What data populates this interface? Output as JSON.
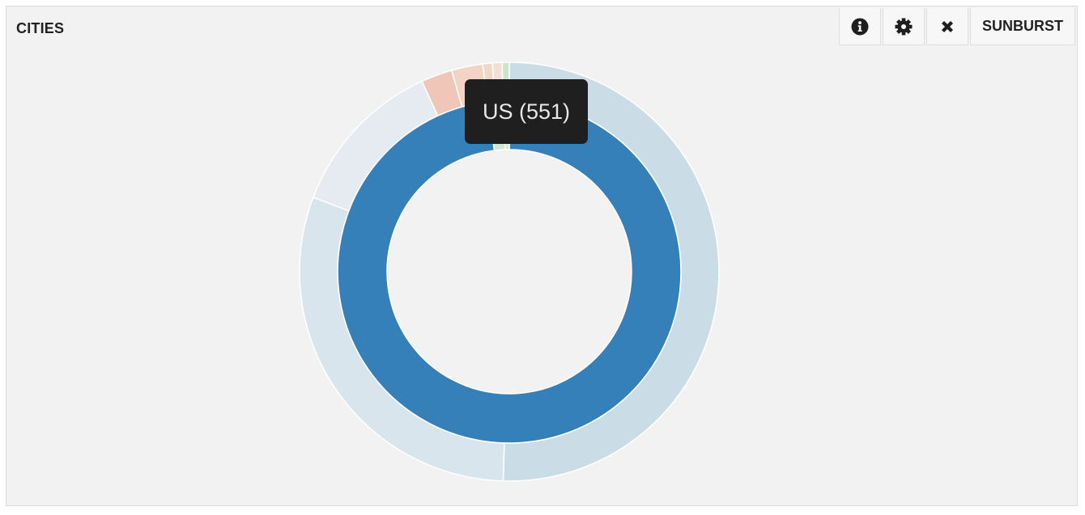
{
  "panel": {
    "title": "CITIES",
    "toolbar": {
      "info_icon": "info-circle-icon",
      "settings_icon": "gear-icon",
      "close_icon": "close-icon",
      "chart_type_label": "SUNBURST"
    }
  },
  "tooltip": {
    "text": "US (551)"
  },
  "chart_data": {
    "type": "sunburst",
    "title": "CITIES",
    "inner_ring": [
      {
        "name": "US",
        "value": 551,
        "color": "#3680ba"
      },
      {
        "name": "",
        "value": 8,
        "color": "#cfe6d1"
      },
      {
        "name": "",
        "value": 3,
        "color": "#d7ead6"
      }
    ],
    "outer_ring": [
      {
        "parent": "US",
        "value": 273,
        "color": "#cadde7"
      },
      {
        "parent": "US",
        "value": 164,
        "color": "#d8e5ec"
      },
      {
        "parent": "US",
        "value": 67,
        "color": "#e6ebf1"
      },
      {
        "parent": "US",
        "value": 13,
        "color": "#efc6b8"
      },
      {
        "parent": "US",
        "value": 13,
        "color": "#f4d3c4"
      },
      {
        "parent": "US",
        "value": 4,
        "color": "#f1d7c6"
      },
      {
        "parent": "US",
        "value": 4,
        "color": "#f3e0d4"
      },
      {
        "parent": "US",
        "value": 3,
        "color": "#cfe3cf"
      }
    ]
  }
}
